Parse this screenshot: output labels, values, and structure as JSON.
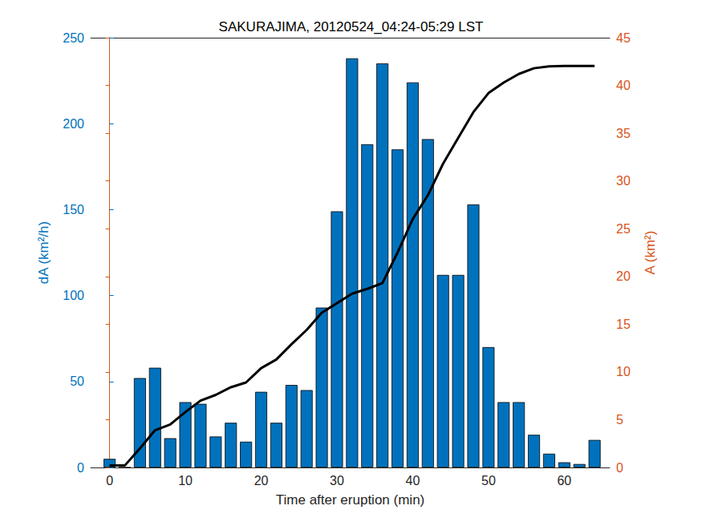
{
  "chart_data": {
    "type": "bar",
    "title": "SAKURAJIMA, 20120524_04:24-05:29 LST",
    "x_label": "Time after eruption (min)",
    "y_label": "dA (km²/h)",
    "y2_label": "A (km²)",
    "x": [
      0,
      2,
      4,
      6,
      8,
      10,
      12,
      14,
      16,
      18,
      20,
      22,
      24,
      26,
      28,
      30,
      32,
      34,
      36,
      38,
      40,
      42,
      44,
      46,
      48,
      50,
      52,
      54,
      56,
      58,
      60,
      62,
      64
    ],
    "series": [
      {
        "type": "bar",
        "color": "#0072BD",
        "axis": "y",
        "values": [
          5,
          0,
          52,
          58,
          17,
          38,
          37,
          18,
          26,
          15,
          44,
          26,
          48,
          45,
          93,
          149,
          238,
          188,
          235,
          185,
          224,
          191,
          112,
          112,
          153,
          70,
          38,
          38,
          19,
          8,
          3,
          2,
          16
        ]
      },
      {
        "type": "line",
        "color": "#000000",
        "axis": "y2",
        "line_style": "solid",
        "values": [
          0.2,
          0.2,
          2,
          3.9,
          4.5,
          5.8,
          7,
          7.6,
          8.4,
          8.9,
          10.4,
          11.3,
          12.9,
          14.4,
          16.2,
          17.2,
          18.2,
          18.7,
          19.3,
          22.5,
          26,
          28.5,
          31.8,
          34.5,
          37.2,
          39.2,
          40.3,
          41.2,
          41.8,
          42,
          42.05,
          42.05,
          42.05
        ]
      }
    ],
    "xlim": [
      -2.5,
      66
    ],
    "xticks": [
      0,
      10,
      20,
      30,
      40,
      50,
      60
    ],
    "ylim": [
      0,
      250
    ],
    "yticks": [
      0,
      50,
      100,
      150,
      200,
      250
    ],
    "y2lim": [
      0,
      45
    ],
    "y2ticks": [
      0,
      5,
      10,
      15,
      20,
      25,
      30,
      35,
      40,
      45
    ],
    "y_color": "#0072BD",
    "y2_color": "#D95319",
    "grid": false
  }
}
